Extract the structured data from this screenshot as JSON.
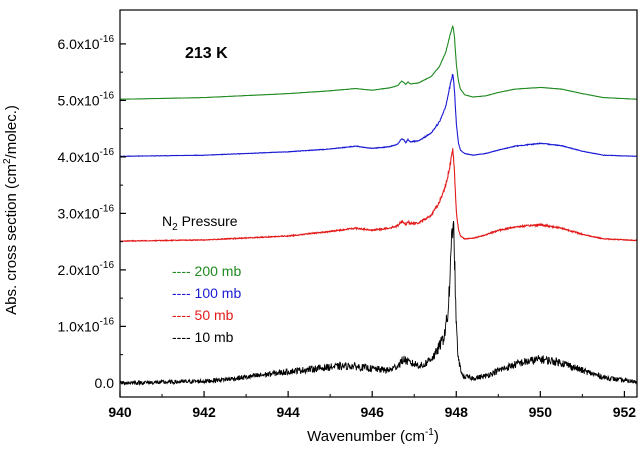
{
  "chart_data": {
    "type": "line",
    "title": "",
    "annotation": "213 K",
    "xlabel": "Wavenumber (cm",
    "xlabel_sup": "-1",
    "xlabel_end": ")",
    "ylabel": "Abs. cross section (cm",
    "ylabel_sup": "2",
    "ylabel_end": "/molec.)",
    "xlim": [
      940,
      952.3
    ],
    "ylim": [
      -2.5e-17,
      6.6e-16
    ],
    "x_ticks": [
      940,
      942,
      944,
      946,
      948,
      950,
      952
    ],
    "y_ticks": [
      {
        "value": 0,
        "base": "0.0",
        "exp": ""
      },
      {
        "value": 1e-16,
        "base": "1.0x10",
        "exp": "-16"
      },
      {
        "value": 2e-16,
        "base": "2.0x10",
        "exp": "-16"
      },
      {
        "value": 3e-16,
        "base": "3.0x10",
        "exp": "-16"
      },
      {
        "value": 4e-16,
        "base": "4.0x10",
        "exp": "-16"
      },
      {
        "value": 5e-16,
        "base": "5.0x10",
        "exp": "-16"
      },
      {
        "value": 6e-16,
        "base": "6.0x10",
        "exp": "-16"
      }
    ],
    "legend_title": "N",
    "legend_title_sub": "2",
    "legend_title_end": " Pressure",
    "legend_placement": "center-left",
    "grid": false,
    "series": [
      {
        "name": "200 mb",
        "color": "#1f8a1f",
        "noise": 4e-19,
        "x": [
          940,
          942,
          944,
          945,
          945.6,
          946,
          946.4,
          946.6,
          946.7,
          946.75,
          946.8,
          946.85,
          946.9,
          947.1,
          947.4,
          947.6,
          947.75,
          947.85,
          947.92,
          947.96,
          948.0,
          948.05,
          948.1,
          948.2,
          948.4,
          948.7,
          949,
          949.4,
          950,
          950.5,
          951,
          951.5,
          952.3
        ],
        "y": [
          5.02e-16,
          5.05e-16,
          5.12e-16,
          5.17e-16,
          5.21e-16,
          5.18e-16,
          5.22e-16,
          5.26e-16,
          5.34e-16,
          5.32e-16,
          5.28e-16,
          5.33e-16,
          5.29e-16,
          5.31e-16,
          5.42e-16,
          5.6e-16,
          5.85e-16,
          6.15e-16,
          6.33e-16,
          6.1e-16,
          5.65e-16,
          5.35e-16,
          5.2e-16,
          5.1e-16,
          5.06e-16,
          5.08e-16,
          5.14e-16,
          5.2e-16,
          5.23e-16,
          5.2e-16,
          5.12e-16,
          5.05e-16,
          5.02e-16
        ]
      },
      {
        "name": "100 mb",
        "color": "#1a1ad4",
        "noise": 1e-18,
        "x": [
          940,
          942,
          944,
          945,
          945.6,
          946,
          946.4,
          946.6,
          946.7,
          946.75,
          946.8,
          946.85,
          946.9,
          947.1,
          947.4,
          947.6,
          947.75,
          947.85,
          947.92,
          947.96,
          948.0,
          948.05,
          948.1,
          948.2,
          948.4,
          948.7,
          949,
          949.4,
          950,
          950.5,
          951,
          951.5,
          952.3
        ],
        "y": [
          4.01e-16,
          4.03e-16,
          4.09e-16,
          4.14e-16,
          4.19e-16,
          4.15e-16,
          4.18e-16,
          4.22e-16,
          4.32e-16,
          4.3e-16,
          4.25e-16,
          4.31e-16,
          4.27e-16,
          4.28e-16,
          4.42e-16,
          4.62e-16,
          4.9e-16,
          5.25e-16,
          5.48e-16,
          5.15e-16,
          4.6e-16,
          4.25e-16,
          4.12e-16,
          4.06e-16,
          4.03e-16,
          4.06e-16,
          4.12e-16,
          4.19e-16,
          4.24e-16,
          4.2e-16,
          4.1e-16,
          4.03e-16,
          4.01e-16
        ]
      },
      {
        "name": "50 mb",
        "color": "#e31a1a",
        "noise": 2e-18,
        "x": [
          940,
          942,
          944,
          945,
          945.6,
          946,
          946.4,
          946.6,
          946.7,
          946.75,
          946.8,
          946.85,
          946.9,
          947.1,
          947.4,
          947.6,
          947.75,
          947.85,
          947.92,
          947.96,
          948.0,
          948.05,
          948.1,
          948.2,
          948.4,
          948.7,
          949,
          949.4,
          950,
          950.5,
          951,
          951.5,
          952.3
        ],
        "y": [
          2.51e-16,
          2.53e-16,
          2.6e-16,
          2.68e-16,
          2.74e-16,
          2.7e-16,
          2.74e-16,
          2.78e-16,
          2.86e-16,
          2.84e-16,
          2.8e-16,
          2.86e-16,
          2.82e-16,
          2.83e-16,
          2.96e-16,
          3.2e-16,
          3.5e-16,
          3.85e-16,
          4.12e-16,
          3.7e-16,
          3.05e-16,
          2.72e-16,
          2.6e-16,
          2.55e-16,
          2.56e-16,
          2.62e-16,
          2.7e-16,
          2.76e-16,
          2.8e-16,
          2.74e-16,
          2.63e-16,
          2.55e-16,
          2.52e-16
        ]
      },
      {
        "name": "10 mb",
        "color": "#000000",
        "noise": 1.2e-17,
        "x": [
          940,
          941,
          942,
          942.5,
          943,
          944,
          945,
          945.5,
          946,
          946.4,
          946.6,
          946.75,
          946.9,
          947.2,
          947.5,
          947.7,
          947.8,
          947.87,
          947.92,
          947.96,
          948.0,
          948.05,
          948.15,
          948.4,
          948.7,
          949,
          949.5,
          950,
          950.5,
          951,
          951.5,
          952,
          952.3
        ],
        "y": [
          0.0,
          1e-18,
          3e-18,
          6e-18,
          1e-17,
          2e-17,
          2.8e-17,
          3e-17,
          2.5e-17,
          2.2e-17,
          3e-17,
          4.2e-17,
          3.5e-17,
          3e-17,
          5e-17,
          8e-17,
          1.2e-16,
          2.1e-16,
          2.95e-16,
          2.2e-16,
          1e-16,
          4e-17,
          1.2e-17,
          8e-18,
          1.2e-17,
          2.2e-17,
          3.5e-17,
          4.2e-17,
          3.6e-17,
          2.2e-17,
          1e-17,
          4e-18,
          2e-18
        ]
      }
    ],
    "legend": [
      {
        "dash": "----",
        "label": "200 mb",
        "color": "#1f8a1f"
      },
      {
        "dash": "----",
        "label": "100 mb",
        "color": "#1a1ad4"
      },
      {
        "dash": "----",
        "label": "  50 mb",
        "color": "#e31a1a"
      },
      {
        "dash": "----",
        "label": "  10 mb",
        "color": "#000000"
      }
    ]
  }
}
